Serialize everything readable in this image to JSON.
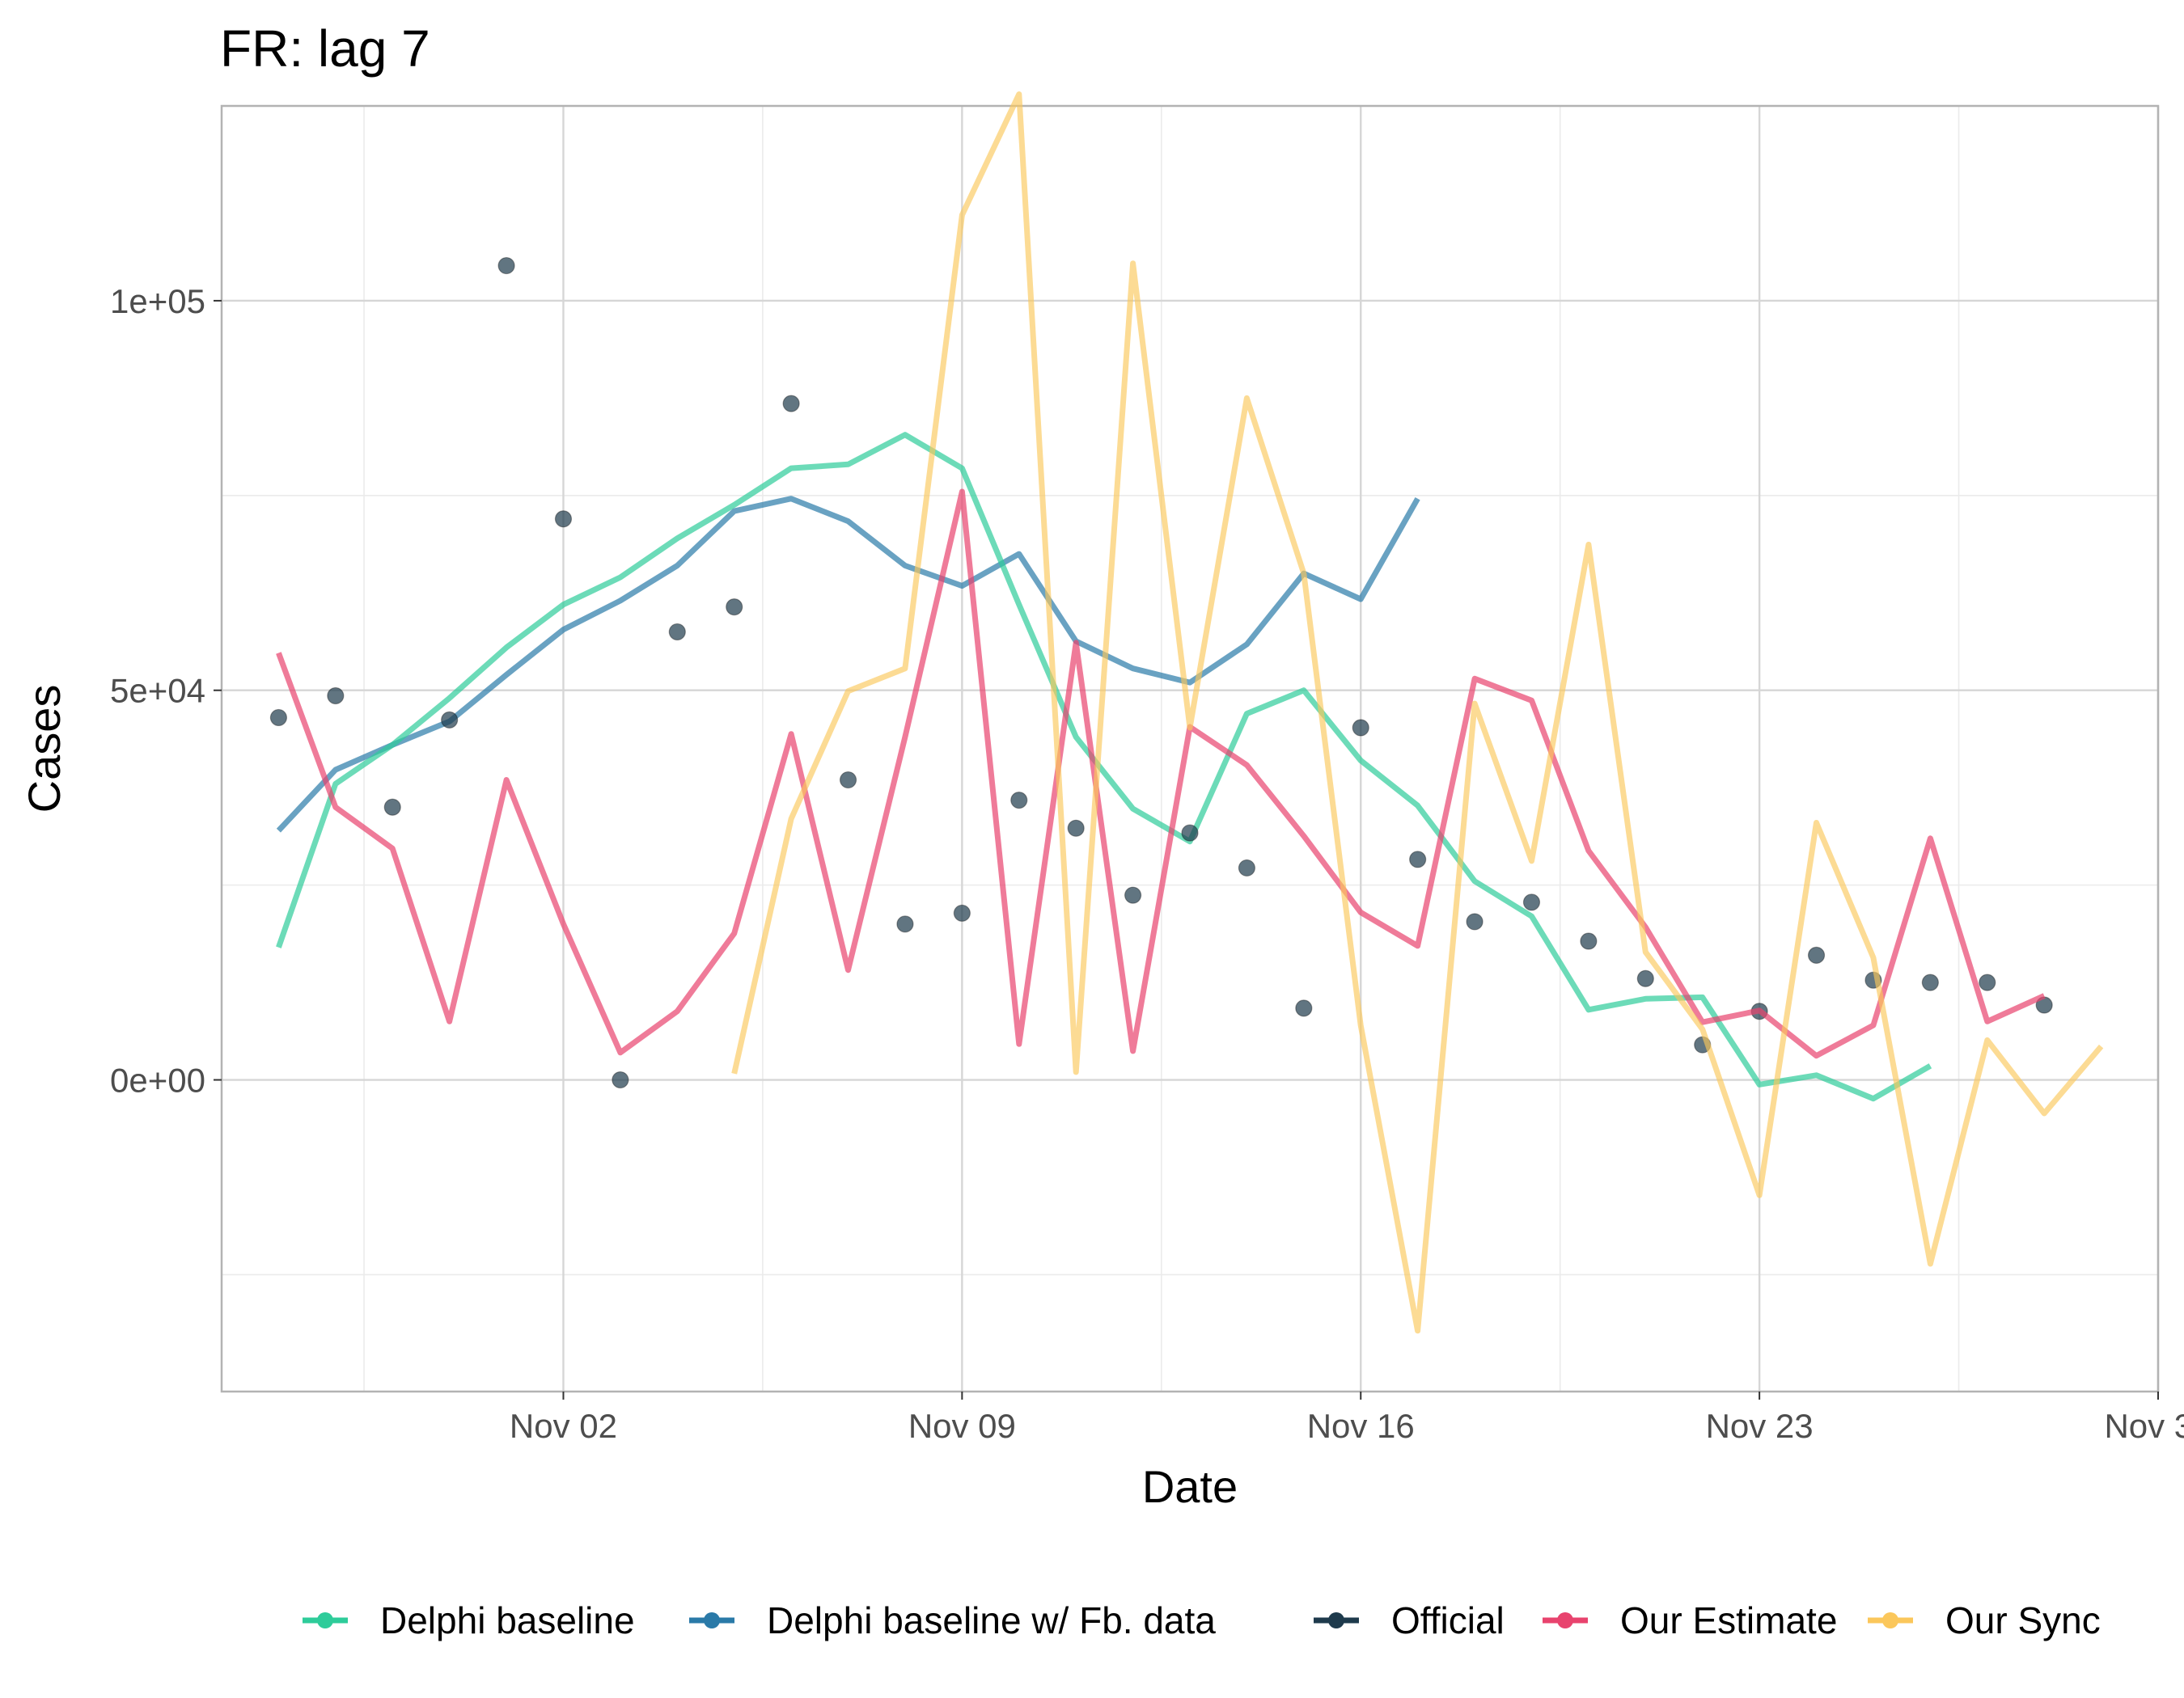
{
  "chart_data": {
    "type": "line",
    "title": "FR: lag 7",
    "xlabel": "Date",
    "ylabel": "Cases",
    "x_dates": [
      "2020-10-28",
      "2020-10-29",
      "2020-10-30",
      "2020-10-31",
      "2020-11-01",
      "2020-11-02",
      "2020-11-03",
      "2020-11-04",
      "2020-11-05",
      "2020-11-06",
      "2020-11-07",
      "2020-11-08",
      "2020-11-09",
      "2020-11-10",
      "2020-11-11",
      "2020-11-12",
      "2020-11-13",
      "2020-11-14",
      "2020-11-15",
      "2020-11-16",
      "2020-11-17",
      "2020-11-18",
      "2020-11-19",
      "2020-11-20",
      "2020-11-21",
      "2020-11-22",
      "2020-11-23",
      "2020-11-24",
      "2020-11-25",
      "2020-11-26",
      "2020-11-27",
      "2020-11-28",
      "2020-11-29"
    ],
    "xlim": [
      "2020-10-27",
      "2020-11-30"
    ],
    "x_ticks": [
      {
        "date": "2020-11-02",
        "label": "Nov 02"
      },
      {
        "date": "2020-11-09",
        "label": "Nov 09"
      },
      {
        "date": "2020-11-16",
        "label": "Nov 16"
      },
      {
        "date": "2020-11-23",
        "label": "Nov 23"
      },
      {
        "date": "2020-11-30",
        "label": "Nov 30"
      }
    ],
    "ylim": [
      -40000,
      125000
    ],
    "y_ticks": [
      {
        "value": 0,
        "label": "0e+00"
      },
      {
        "value": 50000,
        "label": "5e+04"
      },
      {
        "value": 100000,
        "label": "1e+05"
      }
    ],
    "grid": true,
    "legend_position": "bottom",
    "series": [
      {
        "name": "Delphi baseline",
        "color": "#2ecc9a",
        "style": "line",
        "values": [
          17000,
          38000,
          43000,
          49000,
          55500,
          61000,
          64500,
          69500,
          73800,
          78500,
          79000,
          82800,
          78500,
          61000,
          44000,
          34800,
          30600,
          47000,
          50000,
          41000,
          35200,
          25500,
          21000,
          9000,
          10400,
          10600,
          -600,
          600,
          -2400,
          1800,
          null,
          null,
          null
        ]
      },
      {
        "name": "Delphi baseline w/ Fb. data",
        "color": "#2a7aa8",
        "style": "line",
        "values": [
          32000,
          39800,
          43000,
          46000,
          52000,
          57800,
          61500,
          66000,
          73000,
          74600,
          71700,
          66000,
          63400,
          67500,
          56300,
          52800,
          51000,
          55900,
          65000,
          61700,
          74600,
          null,
          null,
          null,
          null,
          null,
          null,
          null,
          null,
          null,
          null,
          null,
          null
        ]
      },
      {
        "name": "Official",
        "color": "#1e3a4c",
        "style": "points",
        "values": [
          46500,
          49300,
          35000,
          46200,
          104500,
          72000,
          0,
          57500,
          60700,
          86800,
          38500,
          20000,
          21400,
          35900,
          32300,
          23700,
          31700,
          27200,
          9200,
          45200,
          28300,
          20300,
          22800,
          17800,
          13000,
          4500,
          8800,
          16000,
          12800,
          12500,
          12500,
          9600,
          null
        ]
      },
      {
        "name": "Our Estimate",
        "color": "#e8436e",
        "style": "line",
        "values": [
          54800,
          35000,
          29700,
          7500,
          38500,
          20000,
          3500,
          8800,
          18800,
          44400,
          14100,
          44000,
          75500,
          4600,
          56100,
          3700,
          45300,
          40400,
          31300,
          21500,
          17200,
          51500,
          48700,
          29400,
          19600,
          7400,
          8900,
          3100,
          7000,
          31000,
          7500,
          10800,
          null
        ]
      },
      {
        "name": "Our Sync",
        "color": "#fbc75b",
        "style": "line",
        "values": [
          null,
          null,
          null,
          null,
          null,
          null,
          null,
          null,
          800,
          33500,
          49900,
          52800,
          111000,
          126500,
          1000,
          104800,
          45200,
          87500,
          65000,
          7000,
          -32200,
          48300,
          28100,
          68700,
          16400,
          6500,
          -14800,
          33000,
          15700,
          -23600,
          5100,
          -4300,
          4300
        ]
      }
    ]
  }
}
